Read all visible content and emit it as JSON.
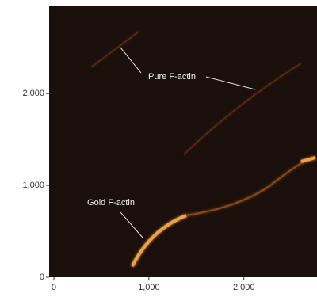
{
  "chart_data": {
    "type": "image",
    "annotations": [
      "Pure F-actin",
      "Gold F-actin"
    ],
    "xlim": [
      -50,
      2770
    ],
    "ylim": [
      0,
      2950
    ],
    "xticks": [
      0,
      {
        "value": 1000,
        "label": "1,000"
      },
      {
        "value": 2000,
        "label": "2,000"
      }
    ],
    "yticks": [
      0,
      {
        "value": 1000,
        "label": "1,000"
      },
      {
        "value": 2000,
        "label": "2,000"
      }
    ]
  }
}
